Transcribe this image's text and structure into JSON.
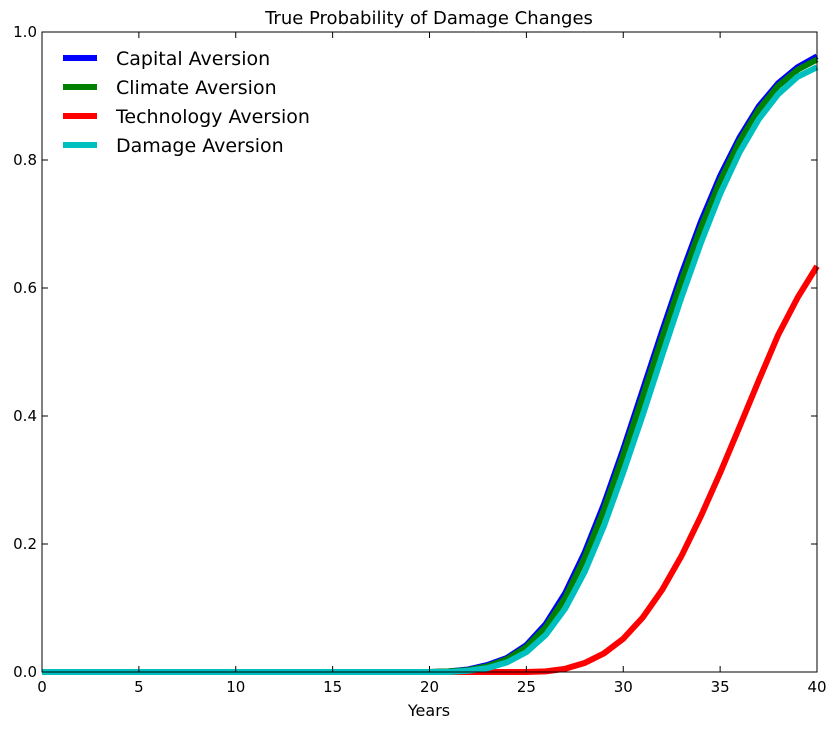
{
  "chart_data": {
    "type": "line",
    "title": "True Probability of Damage Changes",
    "xlabel": "Years",
    "ylabel": "",
    "xlim": [
      0,
      40
    ],
    "ylim": [
      0,
      1.0
    ],
    "x_ticks": [
      0,
      5,
      10,
      15,
      20,
      25,
      30,
      35,
      40
    ],
    "y_ticks": [
      0.0,
      0.2,
      0.4,
      0.6,
      0.8,
      1.0
    ],
    "x_tick_labels": [
      "0",
      "5",
      "10",
      "15",
      "20",
      "25",
      "30",
      "35",
      "40"
    ],
    "y_tick_labels": [
      "0.0",
      "0.2",
      "0.4",
      "0.6",
      "0.8",
      "1.0"
    ],
    "grid": false,
    "legend_position": "top-left",
    "x": [
      0,
      20,
      21,
      22,
      23,
      24,
      25,
      26,
      27,
      28,
      29,
      30,
      31,
      32,
      33,
      34,
      35,
      36,
      37,
      38,
      39,
      40
    ],
    "series": [
      {
        "name": "Capital Aversion",
        "color": "#0000ff",
        "values": [
          0,
          0,
          0.001,
          0.004,
          0.011,
          0.022,
          0.042,
          0.075,
          0.123,
          0.186,
          0.262,
          0.348,
          0.44,
          0.532,
          0.621,
          0.703,
          0.775,
          0.835,
          0.884,
          0.92,
          0.945,
          0.962
        ]
      },
      {
        "name": "Climate Aversion",
        "color": "#008000",
        "values": [
          0,
          0,
          0.001,
          0.003,
          0.009,
          0.02,
          0.039,
          0.07,
          0.116,
          0.178,
          0.253,
          0.339,
          0.43,
          0.522,
          0.611,
          0.694,
          0.767,
          0.829,
          0.879,
          0.916,
          0.941,
          0.957
        ]
      },
      {
        "name": "Technology Aversion",
        "color": "#ff0000",
        "values": [
          0,
          0,
          0,
          0,
          0,
          0,
          0,
          0.001,
          0.005,
          0.014,
          0.029,
          0.052,
          0.085,
          0.128,
          0.181,
          0.243,
          0.311,
          0.383,
          0.456,
          0.527,
          0.585,
          0.634
        ]
      },
      {
        "name": "Damage Aversion",
        "color": "#00bfbf",
        "values": [
          0,
          0,
          0,
          0.002,
          0.006,
          0.015,
          0.031,
          0.058,
          0.099,
          0.156,
          0.228,
          0.312,
          0.401,
          0.494,
          0.585,
          0.67,
          0.747,
          0.812,
          0.864,
          0.903,
          0.93,
          0.945
        ]
      }
    ]
  }
}
